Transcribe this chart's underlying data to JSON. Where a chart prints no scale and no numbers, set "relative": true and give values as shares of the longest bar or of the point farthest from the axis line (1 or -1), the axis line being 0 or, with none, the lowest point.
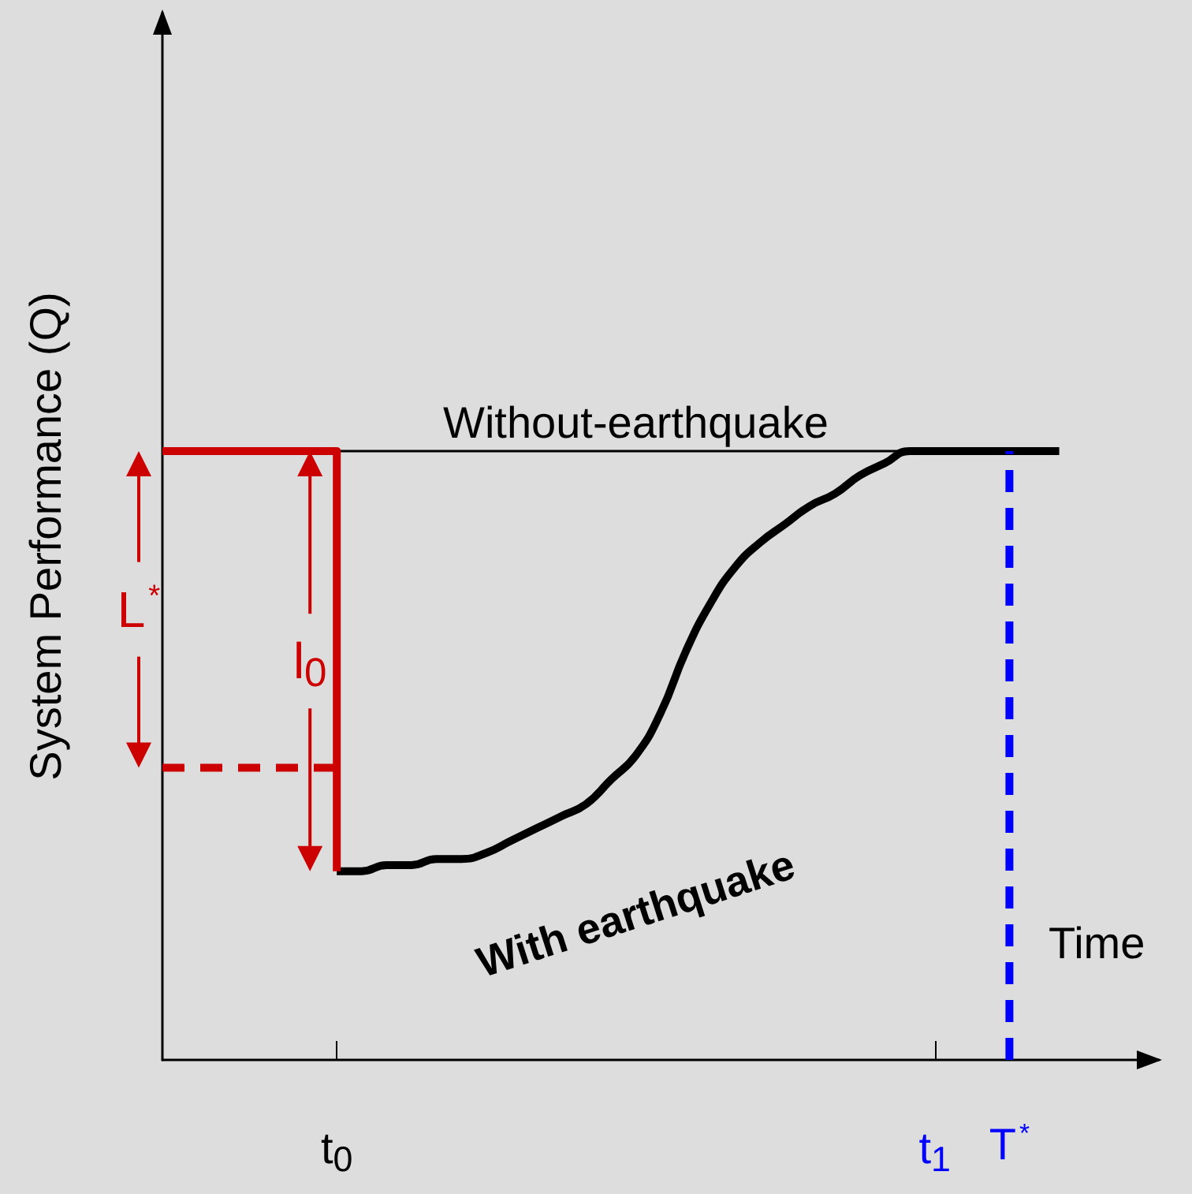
{
  "chart_data": {
    "type": "line",
    "relative": true,
    "xlabel": "Time",
    "ylabel": "System Performance (Q)",
    "legend": false,
    "categories": [
      null,
      null,
      null,
      null,
      null,
      null,
      null,
      "t$_{0}$",
      null,
      null,
      null,
      null,
      null,
      null,
      null,
      null,
      null,
      null,
      null,
      null,
      null,
      null,
      null,
      null,
      null,
      null,
      null,
      null,
      null,
      null,
      null,
      "t$_{1}$",
      null,
      null,
      "T$^{*}$",
      null,
      null,
      null,
      null,
      null,
      null
    ],
    "series": [
      {
        "name": "Without-earthquake",
        "color": "#000000",
        "values": [
          null,
          null,
          null,
          null,
          null,
          null,
          null,
          1,
          1,
          1,
          1,
          1,
          1,
          1,
          1,
          1,
          1,
          1,
          1,
          1,
          1,
          1,
          1,
          1,
          1,
          1,
          1,
          1,
          1,
          1,
          1,
          null,
          null,
          null,
          null,
          null,
          null,
          null,
          null,
          null,
          null
        ]
      },
      {
        "name": "With earthquake",
        "color": "#000000",
        "values": [
          null,
          null,
          null,
          null,
          null,
          null,
          null,
          0.31,
          0.31,
          0.32,
          0.32,
          0.33,
          0.33,
          0.34,
          0.36,
          0.38,
          0.4,
          0.42,
          0.46,
          0.5,
          0.57,
          0.67,
          0.75,
          0.81,
          0.85,
          0.88,
          0.91,
          0.93,
          0.96,
          0.98,
          1,
          1,
          1,
          1,
          1,
          1,
          1,
          null,
          null,
          null,
          null
        ]
      },
      {
        "type": "step",
        "color": "#cc0000",
        "values": [
          1,
          1,
          1,
          1,
          1,
          1,
          1,
          0.31,
          null,
          null,
          null,
          null,
          null,
          null,
          null,
          null,
          null,
          null,
          null,
          null,
          null,
          null,
          null,
          null,
          null,
          null,
          null,
          null,
          null,
          null,
          null,
          null,
          null,
          null,
          null,
          null,
          null,
          null,
          null,
          null,
          null
        ]
      },
      {
        "color": "#cc0000",
        "line_style": "dashed",
        "values": [
          0.48,
          0.48,
          0.48,
          0.48,
          0.48,
          0.48,
          0.48,
          0.48,
          null,
          null,
          null,
          null,
          null,
          null,
          null,
          null,
          null,
          null,
          null,
          null,
          null,
          null,
          null,
          null,
          null,
          null,
          null,
          null,
          null,
          null,
          null,
          null,
          null,
          null,
          null,
          null,
          null,
          null,
          null,
          null,
          null
        ]
      }
    ],
    "ref_lines": [
      {
        "axis": "x",
        "value": "T$^{*}$",
        "color": "#0000ff",
        "line_style": "dashed"
      }
    ],
    "annotations": [
      "L$^{*}$",
      "l$_{0}$"
    ]
  }
}
